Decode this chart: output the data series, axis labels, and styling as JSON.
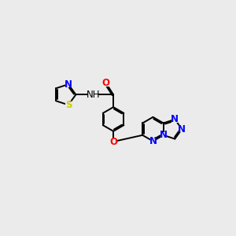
{
  "bg_color": "#ebebeb",
  "bond_color": "#000000",
  "N_color": "#0000ff",
  "O_color": "#ff0000",
  "S_color": "#cccc00",
  "line_width": 1.4,
  "dbo": 0.055,
  "font_size": 8.5,
  "xlim": [
    -0.5,
    9.5
  ],
  "ylim": [
    0.0,
    5.5
  ]
}
